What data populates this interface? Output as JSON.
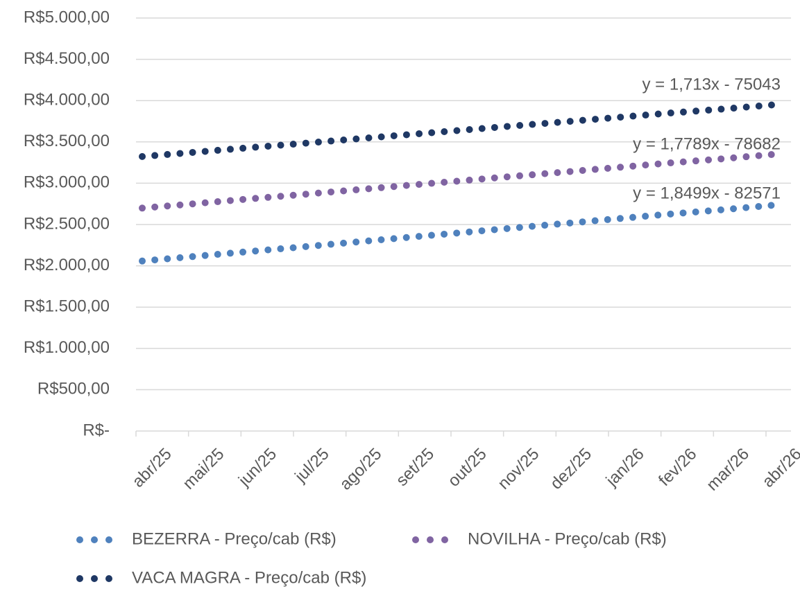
{
  "chart_data": {
    "type": "line",
    "categories": [
      "abr/25",
      "mai/25",
      "jun/25",
      "jul/25",
      "ago/25",
      "set/25",
      "out/25",
      "nov/25",
      "dez/25",
      "jan/26",
      "fev/26",
      "mar/26",
      "abr/26"
    ],
    "series": [
      {
        "name": "BEZERRA - Preço/cab (R$)",
        "color": "#4f81bd",
        "values": [
          2058,
          2114,
          2171,
          2226,
          2284,
          2341,
          2397,
          2454,
          2510,
          2567,
          2624,
          2676,
          2733
        ]
      },
      {
        "name": "NOVILHA - Preço/cab (R$)",
        "color": "#8064a2",
        "values": [
          2699,
          2752,
          2808,
          2861,
          2916,
          2971,
          3025,
          3080,
          3133,
          3188,
          3243,
          3293,
          3348
        ]
      },
      {
        "name": "VACA MAGRA - Preço/cab (R$)",
        "color": "#1f3864",
        "values": [
          3323,
          3375,
          3428,
          3479,
          3532,
          3585,
          3637,
          3690,
          3741,
          3794,
          3847,
          3895,
          3948
        ]
      }
    ],
    "annotations": [
      "y = 1,8499x - 82571",
      "y = 1,7789x - 78682",
      "y = 1,713x - 75043"
    ],
    "ylim": [
      0,
      5000
    ],
    "yticks": [
      {
        "value": 0,
        "label": "R$-"
      },
      {
        "value": 500,
        "label": "R$500,00"
      },
      {
        "value": 1000,
        "label": "R$1.000,00"
      },
      {
        "value": 1500,
        "label": "R$1.500,00"
      },
      {
        "value": 2000,
        "label": "R$2.000,00"
      },
      {
        "value": 2500,
        "label": "R$2.500,00"
      },
      {
        "value": 3000,
        "label": "R$3.000,00"
      },
      {
        "value": 3500,
        "label": "R$3.500,00"
      },
      {
        "value": 4000,
        "label": "R$4.000,00"
      },
      {
        "value": 4500,
        "label": "R$4.500,00"
      },
      {
        "value": 5000,
        "label": "R$5.000,00"
      }
    ],
    "grid": true,
    "legend": "bottom"
  }
}
